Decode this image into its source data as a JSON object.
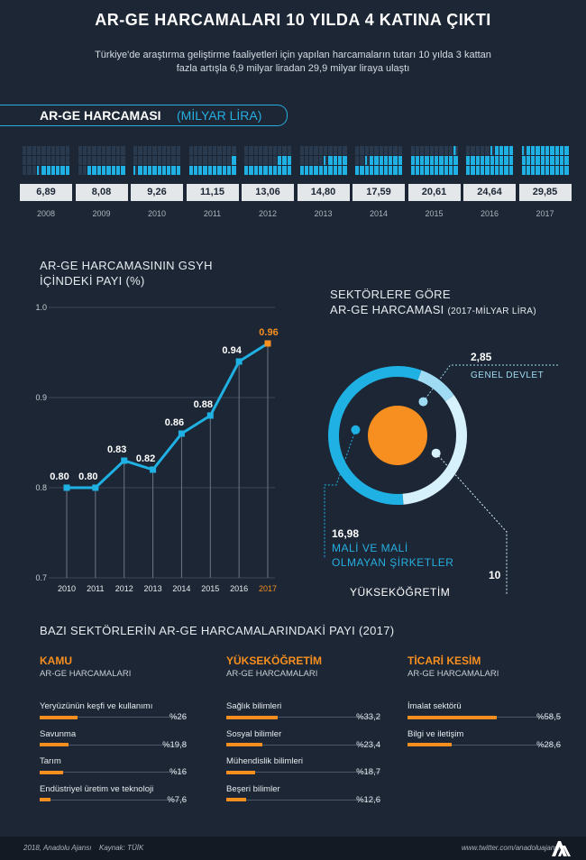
{
  "header": {
    "title": "AR-GE HARCAMALARI 10 YILDA 4 KATINA ÇIKTI",
    "subtitle_line1": "Türkiye'de araştırma geliştirme faaliyetleri için yapılan harcamaların tutarı 10 yılda 3 kattan",
    "subtitle_line2": "fazla artışla 6,9 milyar liradan 29,9 milyar liraya ulaştı"
  },
  "spending": {
    "title_bold": "AR-GE HARCAMASI",
    "title_light": "(MİLYAR LİRA)",
    "items": [
      {
        "year": "2008",
        "value": 6.89,
        "label": "6,89"
      },
      {
        "year": "2009",
        "value": 8.08,
        "label": "8,08"
      },
      {
        "year": "2010",
        "value": 9.26,
        "label": "9,26"
      },
      {
        "year": "2011",
        "value": 11.15,
        "label": "11,15"
      },
      {
        "year": "2012",
        "value": 13.06,
        "label": "13,06"
      },
      {
        "year": "2013",
        "value": 14.8,
        "label": "14,80"
      },
      {
        "year": "2014",
        "value": 17.59,
        "label": "17,59"
      },
      {
        "year": "2015",
        "value": 20.61,
        "label": "20,61"
      },
      {
        "year": "2016",
        "value": 24.64,
        "label": "24,64"
      },
      {
        "year": "2017",
        "value": 29.85,
        "label": "29,85"
      }
    ]
  },
  "chart_data": [
    {
      "type": "line",
      "title": "AR-GE HARCAMASININ GSYH İÇİNDEKİ PAYI (%)",
      "title_line1": "AR-GE HARCAMASININ GSYH",
      "title_line2": "İÇİNDEKİ PAYI (%)",
      "x": [
        "2010",
        "2011",
        "2012",
        "2013",
        "2014",
        "2015",
        "2016",
        "2017"
      ],
      "values": [
        0.8,
        0.8,
        0.83,
        0.82,
        0.86,
        0.88,
        0.94,
        0.96
      ],
      "value_labels": [
        "0.80",
        "0.80",
        "0.83",
        "0.82",
        "0.86",
        "0.88",
        "0.94",
        "0.96"
      ],
      "yticks": [
        "1.0",
        "0.9",
        "0.8",
        "0.7"
      ],
      "ytick_values": [
        1.0,
        0.9,
        0.8,
        0.7
      ],
      "ylim": [
        0.7,
        1.0
      ],
      "grid": true,
      "colors": {
        "line": "#1fb1e3",
        "highlight": "#f68f1f"
      }
    },
    {
      "type": "pie",
      "title_line1": "SEKTÖRLERE GÖRE",
      "title_line2": "AR-GE HARCAMASI",
      "title_note": "(2017-MİLYAR LİRA)",
      "slices": [
        {
          "value": 2.85,
          "value_label": "2,85",
          "label": "GENEL DEVLET",
          "color": "#9fdcf3"
        },
        {
          "value": 10,
          "value_label": "10",
          "label": "YÜKSEKÖĞRETİM",
          "color": "#d6f1fb"
        },
        {
          "value": 16.98,
          "value_label": "16,98",
          "label_line1": "MALİ VE MALİ",
          "label_line2": "OLMAYAN ŞİRKETLER",
          "color": "#1fb1e3"
        }
      ]
    },
    {
      "type": "bar",
      "title": "BAZI SEKTÖRLERİN AR-GE HARCAMALARINDAKİ PAYI (2017)",
      "groups": [
        {
          "name": "KAMU",
          "sub": "AR-GE HARCAMALARI",
          "rows": [
            {
              "label": "Yeryüzünün keşfi ve kullanımı",
              "value": 26,
              "value_label": "%26"
            },
            {
              "label": "Savunma",
              "value": 19.8,
              "value_label": "%19,8"
            },
            {
              "label": "Tarım",
              "value": 16,
              "value_label": "%16"
            },
            {
              "label": "Endüstriyel üretim ve teknoloji",
              "value": 7.6,
              "value_label": "%7,6"
            }
          ]
        },
        {
          "name": "YÜKSEKÖĞRETİM",
          "sub": "AR-GE HARCAMALARI",
          "rows": [
            {
              "label": "Sağlık bilimleri",
              "value": 33.2,
              "value_label": "%33,2"
            },
            {
              "label": "Sosyal bilimler",
              "value": 23.4,
              "value_label": "%23,4"
            },
            {
              "label": "Mühendislik bilimleri",
              "value": 18.7,
              "value_label": "%18,7"
            },
            {
              "label": "Beşeri bilimler",
              "value": 12.6,
              "value_label": "%12,6"
            }
          ]
        },
        {
          "name": "TİCARİ KESİM",
          "sub": "AR-GE HARCAMALARI",
          "rows": [
            {
              "label": "İmalat sektörü",
              "value": 58.5,
              "value_label": "%58,5"
            },
            {
              "label": "Bilgi ve iletişim",
              "value": 28.6,
              "value_label": "%28,6"
            }
          ]
        }
      ]
    }
  ],
  "footer": {
    "left": "2018, Anadolu Ajansı",
    "source": "Kaynak: TÜİK",
    "right": "www.twitter.com/anadoluajansi",
    "logo_icon": "anadolu-agency-logo-icon"
  }
}
